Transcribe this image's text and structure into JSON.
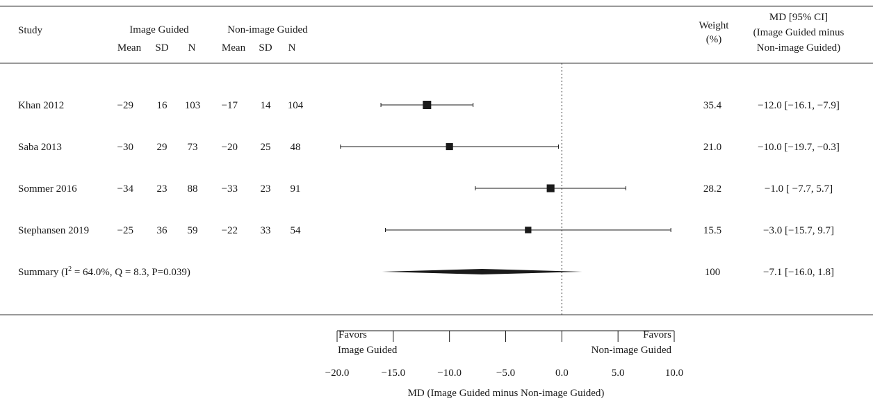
{
  "header": {
    "study": "Study",
    "group1": "Image Guided",
    "group2": "Non-image Guided",
    "mean": "Mean",
    "sd": "SD",
    "n": "N",
    "weight_line1": "Weight",
    "weight_line2": "(%)",
    "md_line1": "MD [95% CI]",
    "md_line2": "(Image Guided minus",
    "md_line3": "Non-image Guided)"
  },
  "rows": [
    {
      "study": "Khan 2012",
      "mean1": "−29",
      "sd1": "16",
      "n1": "103",
      "mean2": "−17",
      "sd2": "14",
      "n2": "104",
      "weight": "35.4",
      "ci": "−12.0 [−16.1, −7.9]"
    },
    {
      "study": "Saba 2013",
      "mean1": "−30",
      "sd1": "29",
      "n1": "73",
      "mean2": "−20",
      "sd2": "25",
      "n2": "48",
      "weight": "21.0",
      "ci": "−10.0 [−19.7, −0.3]"
    },
    {
      "study": "Sommer 2016",
      "mean1": "−34",
      "sd1": "23",
      "n1": "88",
      "mean2": "−33",
      "sd2": "23",
      "n2": "91",
      "weight": "28.2",
      "ci": "−1.0 [ −7.7, 5.7]"
    },
    {
      "study": "Stephansen 2019",
      "mean1": "−25",
      "sd1": "36",
      "n1": "59",
      "mean2": "−22",
      "sd2": "33",
      "n2": "54",
      "weight": "15.5",
      "ci": "−3.0 [−15.7, 9.7]"
    }
  ],
  "summary": {
    "label_prefix": "Summary (I",
    "label_sup": "2",
    "label_suffix": " = 64.0%, Q = 8.3, P=0.039)",
    "weight": "100",
    "ci": "−7.1 [−16.0, 1.8]"
  },
  "axis": {
    "favors_left_1": "Favors",
    "favors_left_2": "Image Guided",
    "favors_right_1": "Favors",
    "favors_right_2": "Non-image Guided",
    "xlabel": "MD (Image Guided minus Non-image Guided)"
  },
  "chart_data": {
    "type": "forest",
    "xlabel": "MD (Image Guided minus Non-image Guided)",
    "xlim": [
      -20,
      10
    ],
    "ticks": [
      -20,
      -15,
      -10,
      -5,
      0,
      5,
      10
    ],
    "tick_labels": [
      "−20.0",
      "−15.0",
      "−10.0",
      "−5.0",
      "0.0",
      "5.0",
      "10.0"
    ],
    "reference_line": 0,
    "studies": [
      {
        "name": "Khan 2012",
        "md": -12.0,
        "lower": -16.1,
        "upper": -7.9,
        "weight": 35.4
      },
      {
        "name": "Saba 2013",
        "md": -10.0,
        "lower": -19.7,
        "upper": -0.3,
        "weight": 21.0
      },
      {
        "name": "Sommer 2016",
        "md": -1.0,
        "lower": -7.7,
        "upper": 5.7,
        "weight": 28.2
      },
      {
        "name": "Stephansen 2019",
        "md": -3.0,
        "lower": -15.7,
        "upper": 9.7,
        "weight": 15.5
      }
    ],
    "summary": {
      "md": -7.1,
      "lower": -16.0,
      "upper": 1.8,
      "weight": 100,
      "I2": 64.0,
      "Q": 8.3,
      "P": 0.039
    }
  }
}
